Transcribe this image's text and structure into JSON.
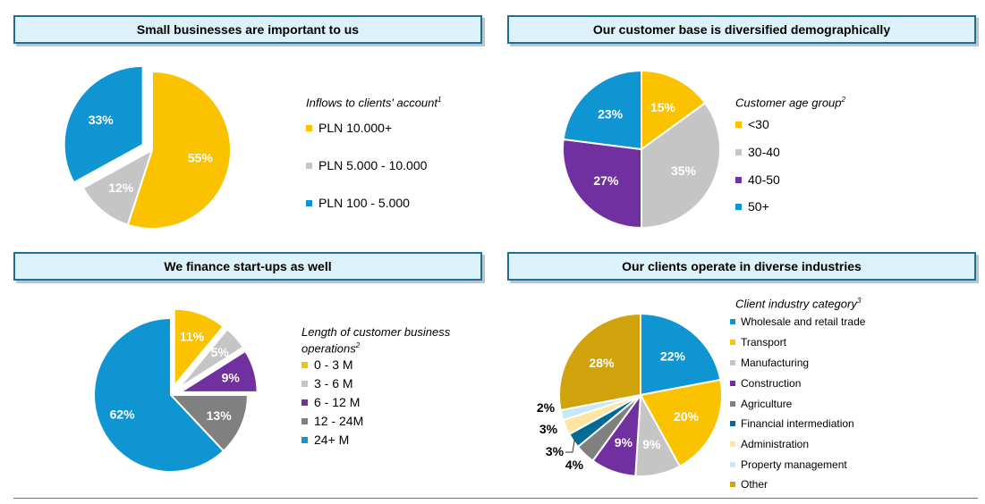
{
  "colors": {
    "blue": "#0f96d2",
    "yellow": "#fbc200",
    "grey": "#c5c5c5",
    "purple": "#7030a0",
    "darkgrey": "#808080",
    "navy": "#006c95",
    "lightyellow": "#fce6a2",
    "lightblue": "#c5e9f6",
    "gold": "#d0a20c",
    "header_bg": "#dcf1fa",
    "header_border": "#1f6f9a"
  },
  "panels": {
    "small_business": {
      "title": "Small businesses are important to us",
      "legend_title": "Inflows to clients' account",
      "footnote": "1"
    },
    "demographics": {
      "title": "Our customer base is diversified demographically",
      "legend_title": "Customer age group",
      "footnote": "2"
    },
    "startups": {
      "title": "We finance start-ups as well",
      "legend_title_line1": "Length of customer business",
      "legend_title_line2": "operations",
      "footnote": "2"
    },
    "industries": {
      "title": "Our clients operate in diverse industries",
      "legend_title": "Client industry category",
      "footnote": "3"
    }
  },
  "chart_data": [
    {
      "id": "inflows",
      "type": "pie",
      "title": "Small businesses are important to us",
      "legend_title": "Inflows to clients' account",
      "categories": [
        "PLN 10.000+",
        "PLN 5.000 - 10.000",
        "PLN 100 - 5.000"
      ],
      "values": [
        55,
        12,
        33
      ],
      "labels": [
        "55%",
        "12%",
        "33%"
      ],
      "colors": [
        "#fbc200",
        "#c5c5c5",
        "#0f96d2"
      ],
      "exploded": [
        false,
        false,
        true
      ]
    },
    {
      "id": "age",
      "type": "pie",
      "title": "Our customer base is diversified demographically",
      "legend_title": "Customer age group",
      "categories": [
        "<30",
        "30-40",
        "40-50",
        "50+"
      ],
      "values": [
        15,
        35,
        27,
        23
      ],
      "labels": [
        "15%",
        "35%",
        "27%",
        "23%"
      ],
      "colors": [
        "#fbc200",
        "#c5c5c5",
        "#7030a0",
        "#0f96d2"
      ]
    },
    {
      "id": "startups",
      "type": "pie",
      "title": "We finance start-ups as well",
      "legend_title": "Length of customer business operations",
      "categories": [
        "0 - 3 M",
        "3 - 6 M",
        "6 - 12 M",
        "12 - 24M",
        "24+ M"
      ],
      "values": [
        11,
        5,
        9,
        13,
        62
      ],
      "labels": [
        "11%",
        "5%",
        "9%",
        "13%",
        "62%"
      ],
      "colors": [
        "#fbc200",
        "#c5c5c5",
        "#7030a0",
        "#808080",
        "#0f96d2"
      ],
      "exploded": [
        true,
        true,
        true,
        false,
        false
      ]
    },
    {
      "id": "industries",
      "type": "pie",
      "title": "Our clients operate in diverse industries",
      "legend_title": "Client industry category",
      "categories": [
        "Wholesale and retail trade",
        "Transport",
        "Manufacturing",
        "Construction",
        "Agriculture",
        "Financial intermediation",
        "Administration",
        "Property management",
        "Other"
      ],
      "values": [
        22,
        20,
        9,
        9,
        4,
        3,
        3,
        2,
        28
      ],
      "labels": [
        "22%",
        "20%",
        "9%",
        "9%",
        "4%",
        "3%",
        "3%",
        "2%",
        "28%"
      ],
      "colors": [
        "#0f96d2",
        "#fbc200",
        "#c5c5c5",
        "#7030a0",
        "#808080",
        "#006c95",
        "#fce6a2",
        "#c5e9f6",
        "#d0a20c"
      ]
    }
  ]
}
